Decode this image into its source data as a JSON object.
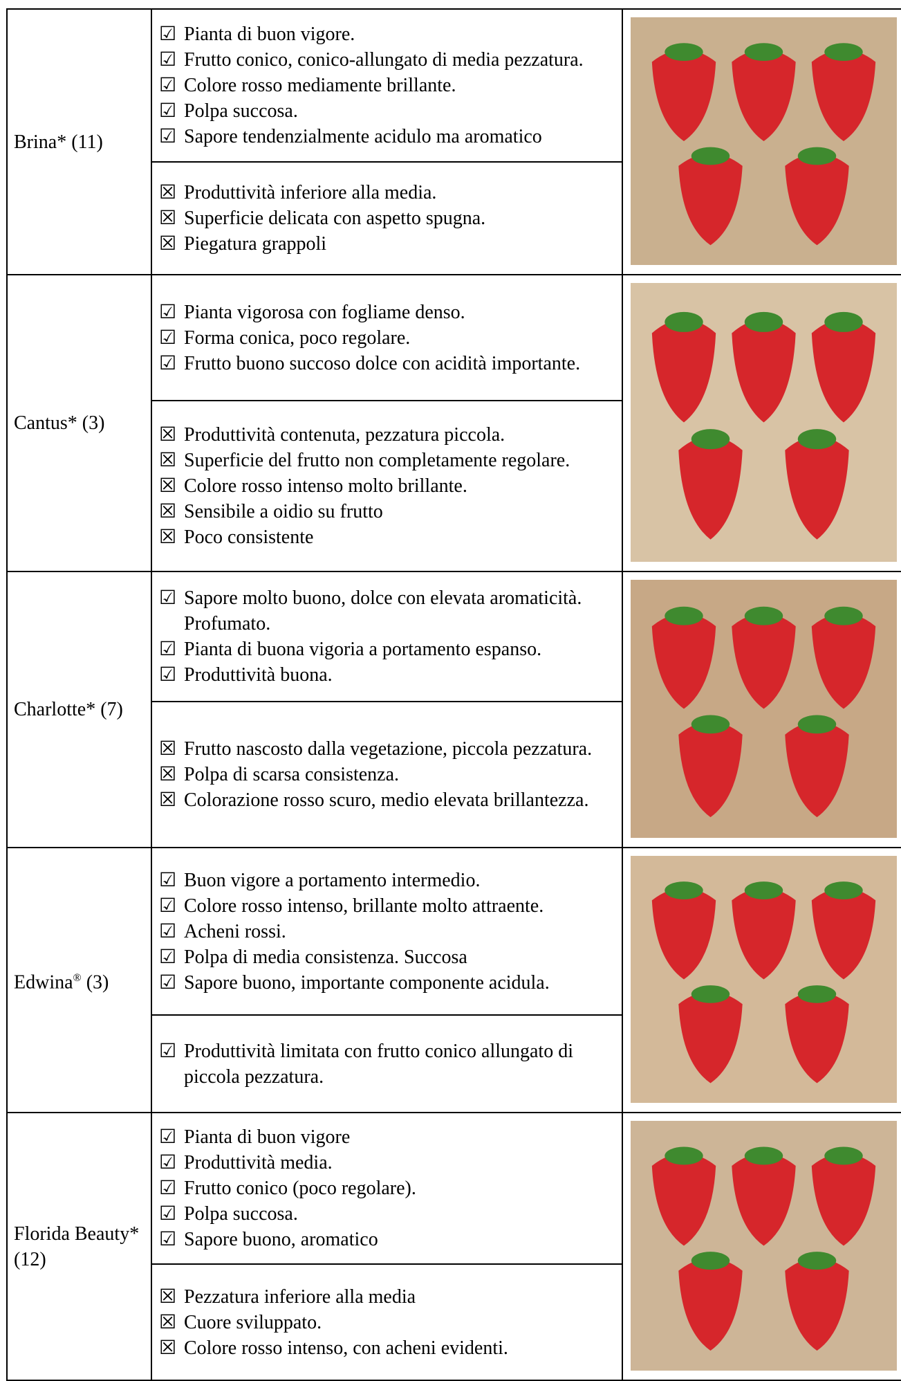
{
  "rows": [
    {
      "name": "Brina*",
      "count": "(11)",
      "sections": [
        {
          "icon": "☑",
          "items": [
            "Pianta di buon vigore.",
            "Frutto conico, conico-allungato di media pezzatura.",
            "Colore rosso mediamente brillante.",
            "Polpa succosa.",
            "Sapore tendenzialmente acidulo ma aromatico"
          ]
        },
        {
          "icon": "☒",
          "items": [
            "Produttività inferiore alla media.",
            "Superficie delicata con aspetto spugna.",
            "Piegatura grappoli"
          ]
        }
      ]
    },
    {
      "name": "Cantus*",
      "count": "(3)",
      "sections": [
        {
          "icon": "☑",
          "items": [
            "Pianta vigorosa con fogliame denso.",
            "Forma conica, poco regolare.",
            "Frutto buono succoso dolce con acidità importante."
          ]
        },
        {
          "icon": "☒",
          "items": [
            "Produttività contenuta, pezzatura piccola.",
            "Superficie del frutto non completamente regolare.",
            "Colore rosso intenso molto brillante.",
            "Sensibile a oidio su frutto",
            "Poco consistente"
          ]
        }
      ]
    },
    {
      "name": "Charlotte*",
      "count": "(7)",
      "sections": [
        {
          "icon": "☑",
          "items": [
            "Sapore molto buono, dolce con elevata aromaticità. Profumato.",
            "Pianta di buona vigoria a portamento espanso.",
            "Produttività buona."
          ]
        },
        {
          "icon": "☒",
          "items": [
            "Frutto nascosto dalla vegetazione, piccola pezzatura.",
            "Polpa di scarsa consistenza.",
            "Colorazione rosso scuro, medio elevata brillantezza."
          ]
        }
      ]
    },
    {
      "name": "Edwina",
      "sup": "®",
      "count": "(3)",
      "sections": [
        {
          "icon": "☑",
          "items": [
            "Buon vigore a portamento intermedio.",
            "Colore rosso intenso, brillante molto attraente.",
            "Acheni rossi.",
            "Polpa di media consistenza. Succosa",
            "Sapore buono, importante componente acidula."
          ]
        },
        {
          "icon": "☑",
          "items": [
            "Produttività limitata con frutto conico allungato di piccola pezzatura."
          ]
        }
      ]
    },
    {
      "name": "Florida Beauty*",
      "count": "(12)",
      "sections": [
        {
          "icon": "☑",
          "items": [
            "Pianta di buon vigore",
            "Produttività media.",
            "Frutto conico (poco regolare).",
            "Polpa succosa.",
            "Sapore buono, aromatico"
          ]
        },
        {
          "icon": "☒",
          "items": [
            "Pezzatura inferiore alla media",
            "Cuore sviluppato.",
            "Colore rosso intenso, con acheni evidenti."
          ]
        }
      ]
    }
  ]
}
